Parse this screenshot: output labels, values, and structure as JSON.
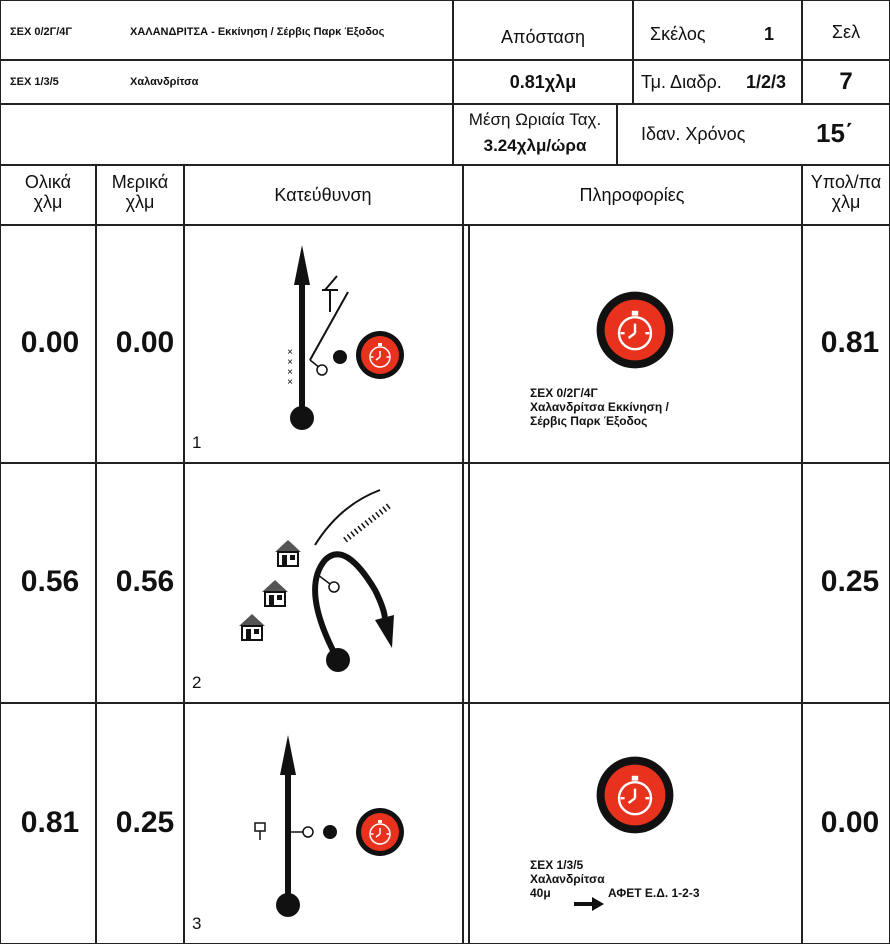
{
  "header": {
    "code": "ΣΕΧ 0/2Γ/4Γ",
    "name": "ΧΑΛΑΝΔΡΙΤΣΑ - Εκκίνηση / Σέρβις Παρκ Έξοδος",
    "code2": "ΣΕΧ 1/3/5",
    "name2": "Χαλανδρίτσα",
    "distance_label": "Απόσταση",
    "distance": "0.81χλμ",
    "leg_label": "Σκέλος",
    "leg": "1",
    "page_label": "Σελ",
    "page": "7",
    "section_label": "Τμ. Διαδρ.",
    "section": "1/2/3",
    "speed_label": "Μέση Ωριαία Ταχ.",
    "speed": "3.24χλμ/ώρα",
    "time_label": "Ιδαν. Χρόνος",
    "time": "15΄"
  },
  "columns": {
    "total": [
      "Ολικά",
      "χλμ"
    ],
    "partial": [
      "Μερικά",
      "χλμ"
    ],
    "direction": "Κατεύθυνση",
    "info": "Πληροφορίες",
    "remaining": [
      "Υπολ/πα",
      "χλμ"
    ]
  },
  "rows": [
    {
      "total": "0.00",
      "partial": "0.00",
      "number": "1",
      "info": [
        "ΣΕΧ 0/2Γ/4Γ",
        "Χαλανδρίτσα Εκκίνηση /",
        "Σέρβις Παρκ Έξοδος"
      ],
      "remaining": "0.81"
    },
    {
      "total": "0.56",
      "partial": "0.56",
      "number": "2",
      "remaining": "0.25"
    },
    {
      "total": "0.81",
      "partial": "0.25",
      "number": "3",
      "info": [
        "ΣΕΧ 1/3/5",
        "Χαλανδρίτσα"
      ],
      "note": {
        "distance": "40μ",
        "target": "ΑΦΕΤ Ε.Δ. 1-2-3"
      },
      "remaining": "0.00"
    }
  ]
}
